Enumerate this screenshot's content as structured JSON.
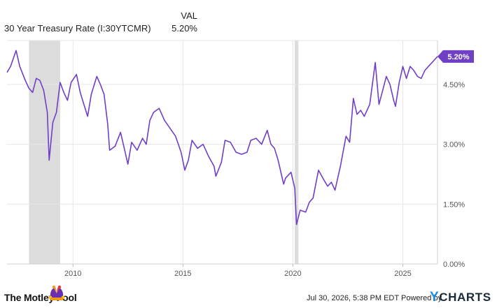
{
  "legend": {
    "column_header": "VAL",
    "series_name": "30 Year Treasury Rate (I:30YTCMR)",
    "series_value": "5.20%"
  },
  "footer": {
    "timestamp": "Jul 30, 2026, 5:38 PM EDT",
    "powered_by": "Powered by",
    "source_brand": "YCHARTS",
    "publisher_brand": "The Motley Fool"
  },
  "colors": {
    "line": "#6f3fc6",
    "recession": "#dcdcdc",
    "grid": "#e6e6e6",
    "axis_text": "#555555"
  },
  "chart_data": {
    "type": "line",
    "title": "",
    "xlabel": "",
    "ylabel": "",
    "xlim": [
      "2007-01-01",
      "2026-07-30"
    ],
    "ylim": [
      0.0,
      5.6
    ],
    "grid": true,
    "legend_position": "top-left",
    "x_ticks": [
      {
        "value": "2010-01-01",
        "label": "2010"
      },
      {
        "value": "2015-01-01",
        "label": "2015"
      },
      {
        "value": "2020-01-01",
        "label": "2020"
      },
      {
        "value": "2025-01-01",
        "label": "2025"
      }
    ],
    "y_ticks": [
      {
        "value": 0.0,
        "label": "0.00%"
      },
      {
        "value": 1.5,
        "label": "1.50%"
      },
      {
        "value": 3.0,
        "label": "3.00%"
      },
      {
        "value": 4.5,
        "label": "4.50%"
      }
    ],
    "recession_bands": [
      {
        "start": "2008-01-01",
        "end": "2009-06-01"
      },
      {
        "start": "2020-02-01",
        "end": "2020-04-01"
      }
    ],
    "last_value_label": "5.20%",
    "series": [
      {
        "name": "30 Year Treasury Rate (I:30YTCMR)",
        "points": [
          [
            "2007-01-01",
            4.8
          ],
          [
            "2007-03-01",
            4.95
          ],
          [
            "2007-06-01",
            5.35
          ],
          [
            "2007-08-01",
            4.95
          ],
          [
            "2007-11-01",
            4.6
          ],
          [
            "2008-01-01",
            4.4
          ],
          [
            "2008-03-01",
            4.3
          ],
          [
            "2008-05-01",
            4.65
          ],
          [
            "2008-07-01",
            4.6
          ],
          [
            "2008-09-01",
            4.35
          ],
          [
            "2008-11-01",
            3.8
          ],
          [
            "2008-12-01",
            2.6
          ],
          [
            "2009-02-01",
            3.55
          ],
          [
            "2009-04-01",
            3.8
          ],
          [
            "2009-06-01",
            4.55
          ],
          [
            "2009-08-01",
            4.3
          ],
          [
            "2009-10-01",
            4.1
          ],
          [
            "2009-12-01",
            4.55
          ],
          [
            "2010-03-01",
            4.75
          ],
          [
            "2010-05-01",
            4.3
          ],
          [
            "2010-07-01",
            4.0
          ],
          [
            "2010-09-01",
            3.7
          ],
          [
            "2010-11-01",
            4.25
          ],
          [
            "2011-02-01",
            4.7
          ],
          [
            "2011-04-01",
            4.5
          ],
          [
            "2011-06-01",
            4.25
          ],
          [
            "2011-08-01",
            3.5
          ],
          [
            "2011-09-01",
            2.85
          ],
          [
            "2011-12-01",
            2.95
          ],
          [
            "2012-03-01",
            3.3
          ],
          [
            "2012-05-01",
            2.9
          ],
          [
            "2012-07-01",
            2.5
          ],
          [
            "2012-09-01",
            3.05
          ],
          [
            "2012-12-01",
            2.85
          ],
          [
            "2013-03-01",
            3.15
          ],
          [
            "2013-05-01",
            3.0
          ],
          [
            "2013-07-01",
            3.6
          ],
          [
            "2013-09-01",
            3.8
          ],
          [
            "2013-12-01",
            3.9
          ],
          [
            "2014-03-01",
            3.6
          ],
          [
            "2014-06-01",
            3.4
          ],
          [
            "2014-09-01",
            3.2
          ],
          [
            "2014-12-01",
            2.8
          ],
          [
            "2015-02-01",
            2.35
          ],
          [
            "2015-04-01",
            2.6
          ],
          [
            "2015-06-01",
            3.1
          ],
          [
            "2015-09-01",
            2.9
          ],
          [
            "2015-12-01",
            3.0
          ],
          [
            "2016-03-01",
            2.7
          ],
          [
            "2016-06-01",
            2.45
          ],
          [
            "2016-07-01",
            2.2
          ],
          [
            "2016-10-01",
            2.55
          ],
          [
            "2016-12-01",
            3.1
          ],
          [
            "2017-03-01",
            3.05
          ],
          [
            "2017-06-01",
            2.8
          ],
          [
            "2017-09-01",
            2.75
          ],
          [
            "2017-12-01",
            2.8
          ],
          [
            "2018-02-01",
            3.1
          ],
          [
            "2018-05-01",
            3.15
          ],
          [
            "2018-08-01",
            3.0
          ],
          [
            "2018-11-01",
            3.35
          ],
          [
            "2019-01-01",
            3.0
          ],
          [
            "2019-03-01",
            2.9
          ],
          [
            "2019-05-01",
            2.6
          ],
          [
            "2019-08-01",
            2.0
          ],
          [
            "2019-09-01",
            2.15
          ],
          [
            "2019-12-01",
            2.3
          ],
          [
            "2020-02-01",
            1.9
          ],
          [
            "2020-03-01",
            0.99
          ],
          [
            "2020-05-01",
            1.35
          ],
          [
            "2020-08-01",
            1.3
          ],
          [
            "2020-10-01",
            1.55
          ],
          [
            "2020-12-01",
            1.65
          ],
          [
            "2021-03-01",
            2.35
          ],
          [
            "2021-06-01",
            2.1
          ],
          [
            "2021-08-01",
            1.95
          ],
          [
            "2021-10-01",
            2.05
          ],
          [
            "2021-12-01",
            1.85
          ],
          [
            "2022-03-01",
            2.45
          ],
          [
            "2022-06-01",
            3.2
          ],
          [
            "2022-08-01",
            3.05
          ],
          [
            "2022-10-01",
            4.15
          ],
          [
            "2022-12-01",
            3.75
          ],
          [
            "2023-02-01",
            3.85
          ],
          [
            "2023-04-01",
            3.7
          ],
          [
            "2023-07-01",
            4.0
          ],
          [
            "2023-10-01",
            5.05
          ],
          [
            "2023-12-01",
            4.0
          ],
          [
            "2024-02-01",
            4.35
          ],
          [
            "2024-04-01",
            4.7
          ],
          [
            "2024-06-01",
            4.5
          ],
          [
            "2024-08-01",
            4.1
          ],
          [
            "2024-09-01",
            3.95
          ],
          [
            "2024-11-01",
            4.55
          ],
          [
            "2025-01-01",
            4.95
          ],
          [
            "2025-03-01",
            4.65
          ],
          [
            "2025-05-01",
            4.95
          ],
          [
            "2025-07-01",
            4.85
          ],
          [
            "2025-09-01",
            4.7
          ],
          [
            "2025-11-01",
            4.65
          ],
          [
            "2026-01-01",
            4.85
          ],
          [
            "2026-03-01",
            4.95
          ],
          [
            "2026-05-01",
            5.05
          ],
          [
            "2026-07-30",
            5.2
          ]
        ]
      }
    ]
  }
}
